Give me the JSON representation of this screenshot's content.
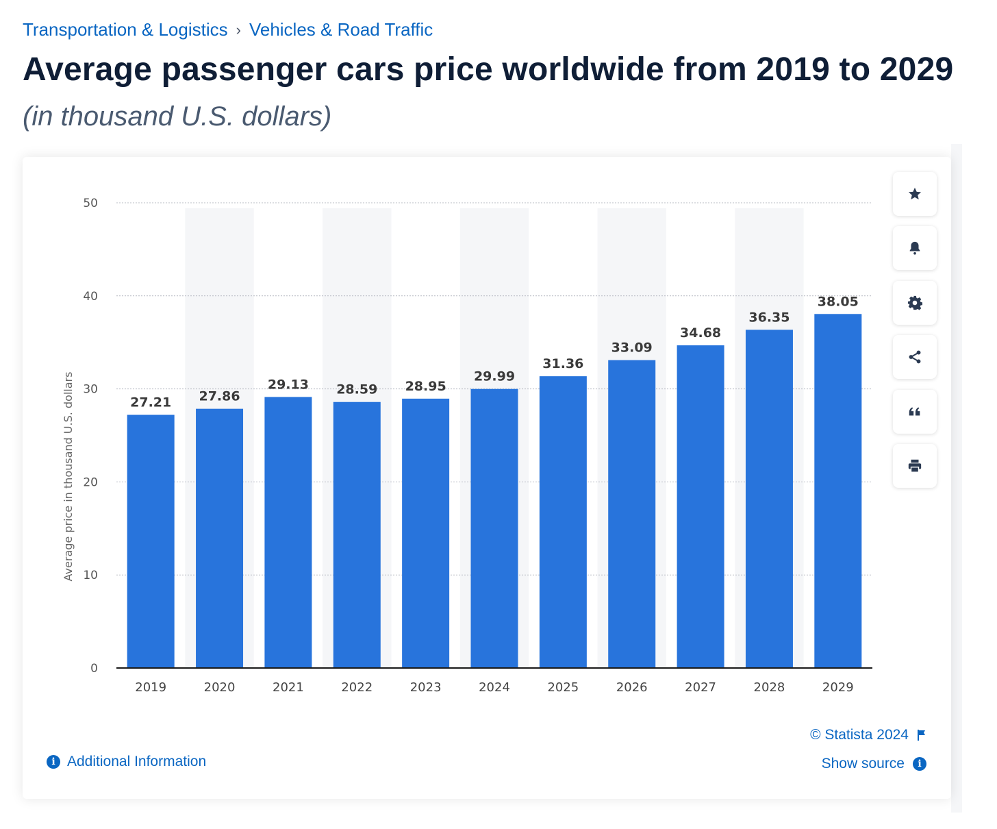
{
  "breadcrumb": {
    "items": [
      "Transportation & Logistics",
      "Vehicles & Road Traffic"
    ],
    "separator": "›"
  },
  "page": {
    "title": "Average passenger cars price worldwide from 2019 to 2029",
    "subtitle": "(in thousand U.S. dollars)"
  },
  "toolbar": {
    "buttons": [
      "star-icon",
      "bell-icon",
      "gear-icon",
      "share-icon",
      "quote-icon",
      "print-icon"
    ]
  },
  "footer": {
    "copyright": "© Statista 2024",
    "show_source": "Show source",
    "additional_info": "Additional Information"
  },
  "colors": {
    "bar": "#2874dc",
    "link": "#0a66c2",
    "title": "#0f1e36"
  },
  "chart_data": {
    "type": "bar",
    "categories": [
      "2019",
      "2020",
      "2021",
      "2022",
      "2023",
      "2024",
      "2025",
      "2026",
      "2027",
      "2028",
      "2029"
    ],
    "values": [
      27.21,
      27.86,
      29.13,
      28.59,
      28.95,
      29.99,
      31.36,
      33.09,
      34.68,
      36.35,
      38.05
    ],
    "value_labels": [
      "27.21",
      "27.86",
      "29.13",
      "28.59",
      "28.95",
      "29.99",
      "31.36",
      "33.09",
      "34.68",
      "36.35",
      "38.05"
    ],
    "ylabel": "Average price in thousand U.S. dollars",
    "ylim": [
      0,
      50
    ],
    "yticks": [
      "0",
      "10",
      "20",
      "30",
      "40",
      "50"
    ],
    "grid": true
  }
}
